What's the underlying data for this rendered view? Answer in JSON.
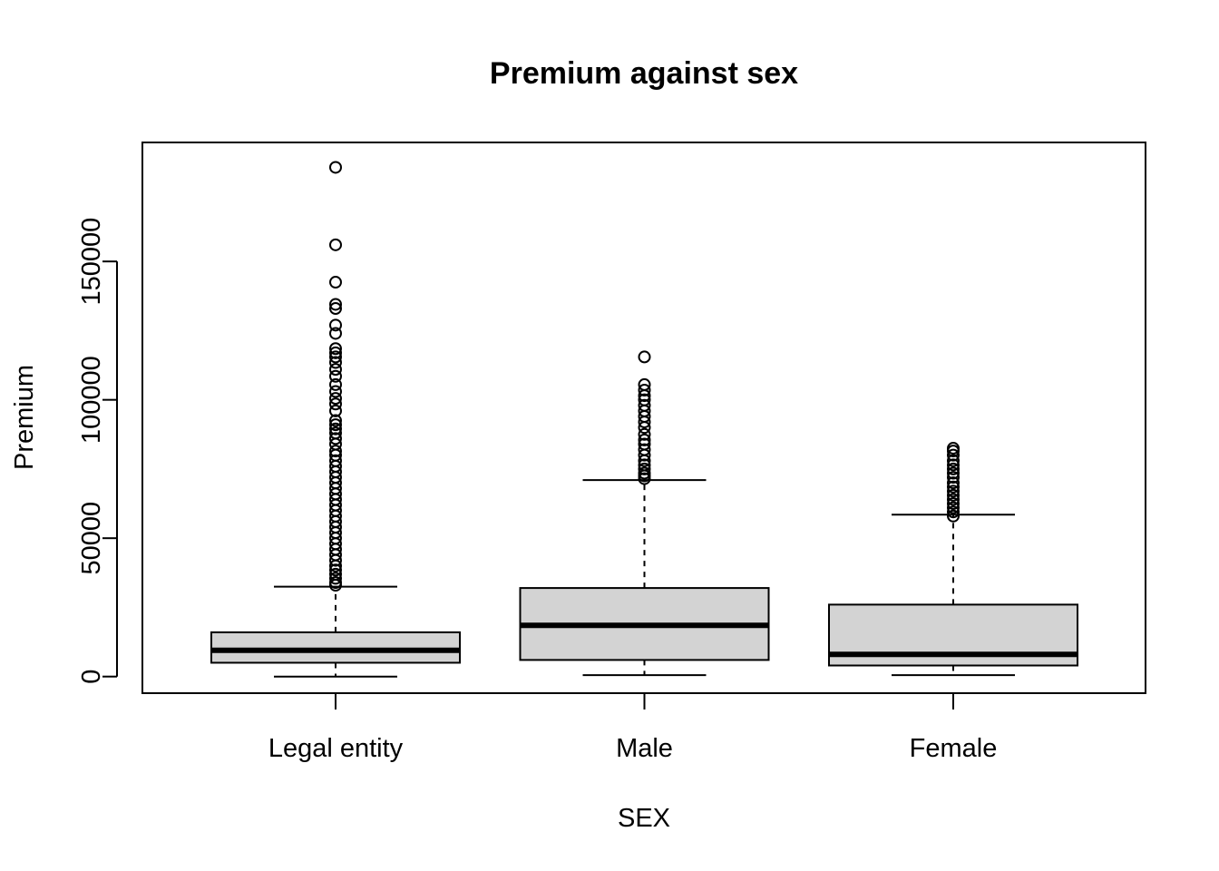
{
  "chart_data": {
    "type": "boxplot",
    "title": "Premium against sex",
    "xlabel": "SEX",
    "ylabel": "Premium",
    "ylim": [
      -6000,
      193000
    ],
    "yticks": [
      0,
      50000,
      100000,
      150000
    ],
    "categories": [
      "Legal entity",
      "Male",
      "Female"
    ],
    "box_fill": "#d3d3d3",
    "grid": false,
    "boxes": [
      {
        "name": "Legal entity",
        "whisker_low": 0,
        "q1": 5000,
        "median": 9500,
        "q3": 16000,
        "whisker_high": 32500,
        "outliers": [
          33000,
          34000,
          35500,
          37000,
          38500,
          40000,
          42000,
          44000,
          46000,
          48000,
          50000,
          52000,
          54000,
          56000,
          58000,
          60000,
          62000,
          64000,
          66000,
          68000,
          70000,
          72000,
          74000,
          76000,
          78000,
          80000,
          81500,
          84000,
          86000,
          88000,
          89500,
          91000,
          92500,
          96000,
          98500,
          100500,
          103000,
          105500,
          108500,
          111000,
          113500,
          115500,
          117000,
          118500,
          124000,
          127000,
          133000,
          134500,
          142500,
          156000,
          184000
        ]
      },
      {
        "name": "Male",
        "whisker_low": 500,
        "q1": 6000,
        "median": 18500,
        "q3": 32000,
        "whisker_high": 71000,
        "outliers": [
          71500,
          72500,
          73500,
          75000,
          76500,
          78000,
          80000,
          82000,
          84000,
          85500,
          87500,
          90000,
          92000,
          94000,
          96000,
          98000,
          100000,
          101500,
          103500,
          105500,
          115500
        ]
      },
      {
        "name": "Female",
        "whisker_low": 500,
        "q1": 4000,
        "median": 8000,
        "q3": 26000,
        "whisker_high": 58500,
        "outliers": [
          58000,
          59500,
          61000,
          62500,
          64000,
          65500,
          67000,
          68500,
          70000,
          72000,
          73500,
          75000,
          76500,
          78000,
          80000,
          81500,
          82500
        ]
      }
    ]
  }
}
